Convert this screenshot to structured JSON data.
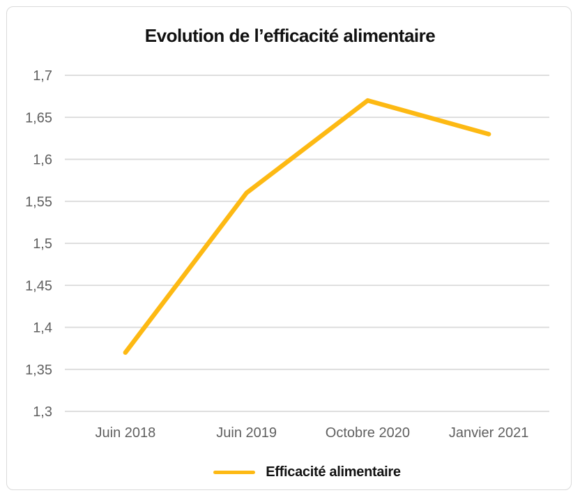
{
  "chart_data": {
    "type": "line",
    "title": "Evolution de l’efficacité alimentaire",
    "categories": [
      "Juin 2018",
      "Juin 2019",
      "Octobre 2020",
      "Janvier 2021"
    ],
    "series": [
      {
        "name": "Efficacité alimentaire",
        "values": [
          1.37,
          1.56,
          1.67,
          1.63
        ],
        "color": "#FDB913"
      }
    ],
    "ylim": [
      1.3,
      1.7
    ],
    "yticks": [
      {
        "value": 1.3,
        "label": "1,3"
      },
      {
        "value": 1.35,
        "label": "1,35"
      },
      {
        "value": 1.4,
        "label": "1,4"
      },
      {
        "value": 1.45,
        "label": "1,45"
      },
      {
        "value": 1.5,
        "label": "1,5"
      },
      {
        "value": 1.55,
        "label": "1,55"
      },
      {
        "value": 1.6,
        "label": "1,6"
      },
      {
        "value": 1.65,
        "label": "1,65"
      },
      {
        "value": 1.7,
        "label": "1,7"
      }
    ],
    "decimal_separator": ",",
    "grid": "horizontal-only",
    "legend_position": "bottom-center",
    "colors": {
      "line": "#FDB913",
      "grid": "#D9D9D9",
      "tick_labels": "#5F5F5F",
      "title_text": "#111111",
      "legend_text": "#111111",
      "card_border": "#D9D9D9",
      "background": "#FFFFFF"
    }
  }
}
